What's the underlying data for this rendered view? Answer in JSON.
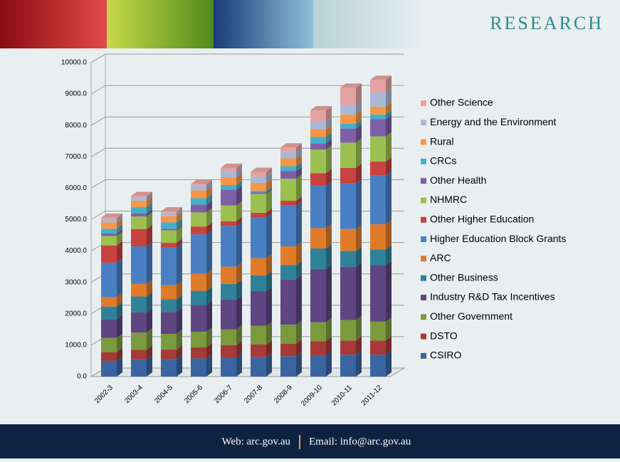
{
  "header": {
    "title": "RESEARCH"
  },
  "chart_data": {
    "type": "bar",
    "stacked": true,
    "categories": [
      "2002-3",
      "2003-4",
      "2004-5",
      "2005-6",
      "2006-7",
      "2007-8",
      "2008-9",
      "2009-10",
      "2010-11",
      "2011-12"
    ],
    "series": [
      {
        "name": "CSIRO",
        "color": "#3b65a0",
        "values": [
          500,
          550,
          560,
          580,
          600,
          620,
          650,
          680,
          700,
          700
        ]
      },
      {
        "name": "DSTO",
        "color": "#a53a38",
        "values": [
          280,
          300,
          300,
          350,
          400,
          400,
          400,
          450,
          450,
          450
        ]
      },
      {
        "name": "Other Government",
        "color": "#7b9a3e",
        "values": [
          450,
          550,
          500,
          500,
          500,
          600,
          600,
          600,
          650,
          600
        ]
      },
      {
        "name": "Industry R&D Tax Incentives",
        "color": "#5f4682",
        "values": [
          600,
          650,
          700,
          850,
          950,
          1100,
          1450,
          1700,
          1700,
          1800
        ]
      },
      {
        "name": "Other Business",
        "color": "#2f8299",
        "values": [
          400,
          500,
          400,
          450,
          500,
          500,
          450,
          650,
          500,
          500
        ]
      },
      {
        "name": "ARC",
        "color": "#e07b2a",
        "values": [
          300,
          400,
          450,
          550,
          550,
          550,
          600,
          650,
          700,
          800
        ]
      },
      {
        "name": "Higher Education Block Grants",
        "color": "#4a7fc4",
        "values": [
          1100,
          1200,
          1200,
          1250,
          1300,
          1300,
          1300,
          1350,
          1450,
          1550
        ]
      },
      {
        "name": "Other Higher Education",
        "color": "#c8423f",
        "values": [
          550,
          550,
          150,
          250,
          150,
          150,
          150,
          400,
          500,
          450
        ]
      },
      {
        "name": "NHMRC",
        "color": "#9cc050",
        "values": [
          300,
          400,
          400,
          450,
          500,
          600,
          700,
          750,
          800,
          800
        ]
      },
      {
        "name": "Other Health",
        "color": "#7d5fa5",
        "values": [
          80,
          100,
          50,
          250,
          500,
          50,
          250,
          200,
          450,
          550
        ]
      },
      {
        "name": "CRCs",
        "color": "#44b0ca",
        "values": [
          150,
          200,
          200,
          200,
          150,
          50,
          150,
          200,
          150,
          150
        ]
      },
      {
        "name": "Rural",
        "color": "#f79646",
        "values": [
          200,
          200,
          200,
          250,
          250,
          250,
          250,
          250,
          300,
          250
        ]
      },
      {
        "name": "Energy and the Environment",
        "color": "#aab8d8",
        "values": [
          100,
          100,
          100,
          150,
          200,
          200,
          200,
          250,
          300,
          450
        ]
      },
      {
        "name": "Other Science",
        "color": "#e4a2a2",
        "values": [
          50,
          50,
          50,
          50,
          100,
          150,
          150,
          350,
          550,
          400
        ]
      }
    ],
    "ylim": [
      0,
      10000
    ],
    "yticks": [
      {
        "value": 0,
        "label": "0.0"
      },
      {
        "value": 1000,
        "label": "1000.0"
      },
      {
        "value": 2000,
        "label": "2000.0"
      },
      {
        "value": 3000,
        "label": "3000.0"
      },
      {
        "value": 4000,
        "label": "4000.0"
      },
      {
        "value": 5000,
        "label": "5000.0"
      },
      {
        "value": 6000,
        "label": "6000.0"
      },
      {
        "value": 7000,
        "label": "7000.0"
      },
      {
        "value": 8000,
        "label": "8000.0"
      },
      {
        "value": 9000,
        "label": "9000.0"
      },
      {
        "value": 10000,
        "label": "10000.0"
      }
    ],
    "grid": true,
    "legend": "right"
  },
  "footer": {
    "web": "Web: arc.gov.au",
    "email": "Email: info@arc.gov.au"
  }
}
